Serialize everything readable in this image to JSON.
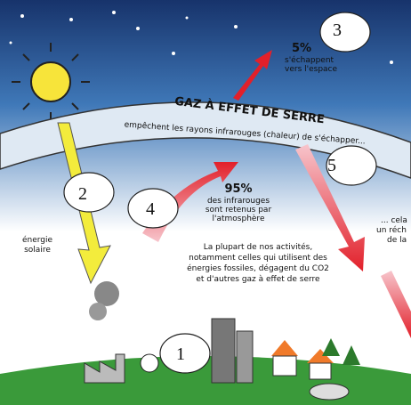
{
  "banner": {
    "title": "GAZ À EFFET DE SERRE",
    "subtitle": "empêchent les rayons infrarouges (chaleur) de s'échapper..."
  },
  "escape": {
    "percent": "5%",
    "text": [
      "s'échappent",
      "vers l'espace"
    ]
  },
  "retained": {
    "percent": "95%",
    "text": [
      "des infrarouges",
      "sont retenus par",
      "l'atmosphère"
    ]
  },
  "solar": [
    "énergie",
    "solaire"
  ],
  "activities": [
    "La plupart de nos activités,",
    "notamment celles qui utilisent des",
    "énergies fossiles, dégagent du CO2",
    "et d'autres gaz à effet de serre"
  ],
  "cut_text": [
    "... cela",
    "un réch",
    "de la"
  ],
  "markers": [
    "1",
    "2",
    "3",
    "4",
    "5"
  ]
}
